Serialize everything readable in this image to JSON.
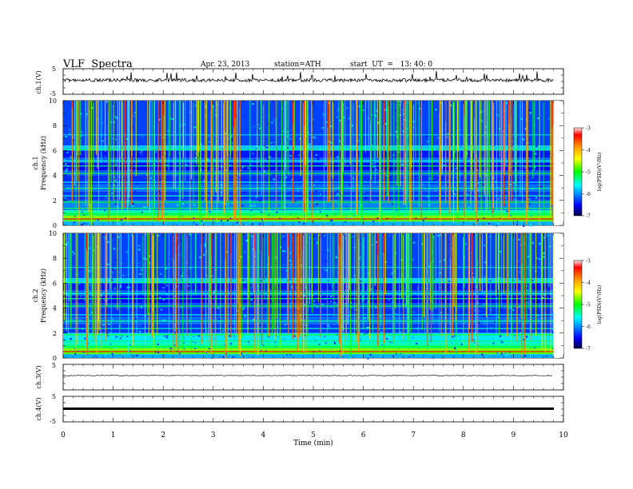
{
  "header": {
    "title": "VLF  Spectra",
    "date": "Apr. 23, 2013",
    "station": "station=ATH",
    "start": "start  UT  =   13: 40: 0"
  },
  "colors": {
    "colormap": [
      "#000044",
      "#0000ff",
      "#00ffff",
      "#00ff00",
      "#ffff00",
      "#ff8800",
      "#ff0000",
      "#ffdddd"
    ],
    "trace": "#000000"
  },
  "chart_data": [
    {
      "type": "line",
      "panel": "ch1-waveform",
      "ylabel": "ch.1(V)",
      "ylim": [
        -5,
        5
      ],
      "yticks": [
        "5",
        "-5"
      ],
      "xlim": [
        0,
        10
      ],
      "description_values": {
        "baseline": 0,
        "spike_max": 1.0
      }
    },
    {
      "type": "heatmap",
      "panel": "ch1-spectrogram",
      "ylabel": "ch.1\nFrequency  (kHz)",
      "ylabel_lines": [
        "ch.1",
        "Frequency  (kHz)"
      ],
      "ylim": [
        0,
        10
      ],
      "yticks": [
        "0",
        "2",
        "4",
        "6",
        "8",
        "10"
      ],
      "xlim": [
        0,
        10
      ],
      "colorbar": {
        "label": "log(PSD)(V²/Hz)",
        "range": [
          -7,
          -3
        ],
        "ticks": [
          "-3",
          "-4",
          "-5",
          "-6",
          "-7"
        ]
      }
    },
    {
      "type": "heatmap",
      "panel": "ch2-spectrogram",
      "ylabel_lines": [
        "ch.2",
        "Frequency  (kHz)"
      ],
      "ylim": [
        0,
        10
      ],
      "yticks": [
        "0",
        "2",
        "4",
        "6",
        "8",
        "10"
      ],
      "xlim": [
        0,
        10
      ],
      "colorbar": {
        "label": "log(PSD)(V²/Hz)",
        "range": [
          -7,
          -3
        ],
        "ticks": [
          "-3",
          "-4",
          "-5",
          "-6",
          "-7"
        ]
      }
    },
    {
      "type": "line",
      "panel": "ch3-waveform",
      "ylabel": "ch.3(V)",
      "ylim": [
        -5,
        5
      ],
      "yticks": [
        "5"
      ],
      "xlim": [
        0,
        10
      ],
      "description_values": {
        "baseline": 0
      }
    },
    {
      "type": "line",
      "panel": "ch4-waveform",
      "ylabel": "ch.4(V)",
      "ylim": [
        -5,
        5
      ],
      "yticks": [
        "5",
        "-5"
      ],
      "xlim": [
        0,
        10
      ],
      "description_values": {
        "baseline": 0
      }
    }
  ],
  "xaxis": {
    "label": "Time  (min)",
    "ticks": [
      "0",
      "1",
      "2",
      "3",
      "4",
      "5",
      "6",
      "7",
      "8",
      "9",
      "10"
    ],
    "xlim": [
      0,
      10
    ],
    "data_end": 9.8
  }
}
